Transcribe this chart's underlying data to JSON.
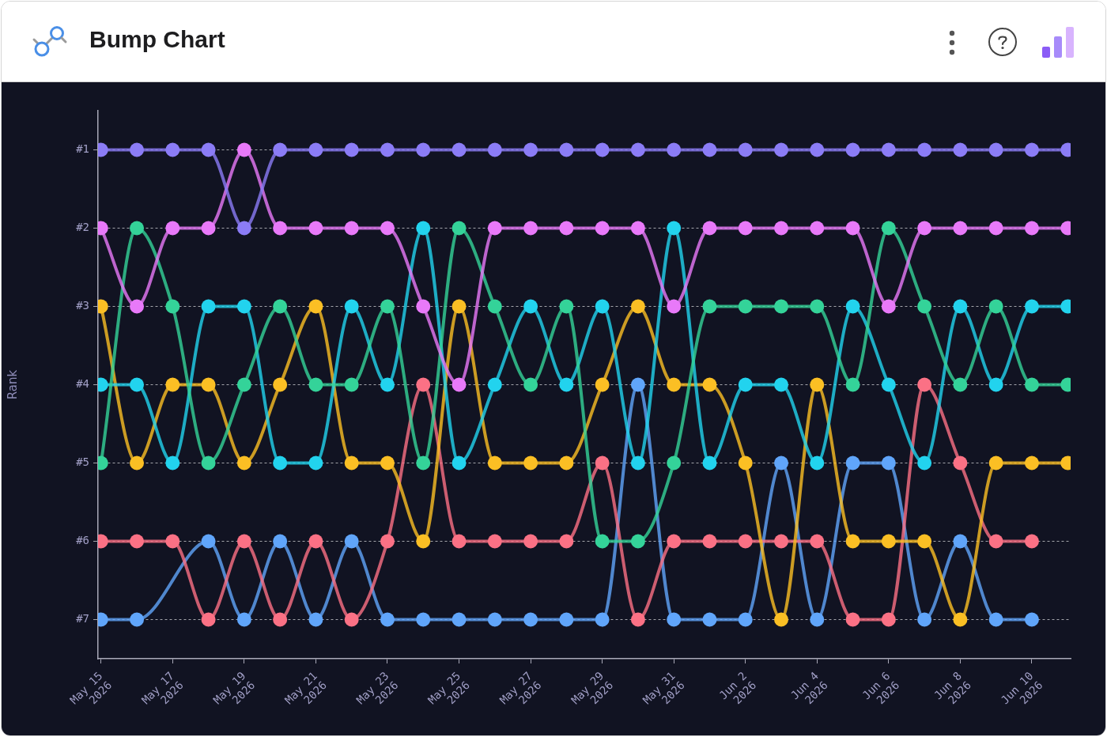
{
  "chart_data": {
    "type": "line",
    "title": "Bump Chart",
    "ylabel": "Rank",
    "x": [
      "2026-05-15",
      "2026-05-16",
      "2026-05-17",
      "2026-05-18",
      "2026-05-19",
      "2026-05-20",
      "2026-05-21",
      "2026-05-22",
      "2026-05-23",
      "2026-05-24",
      "2026-05-25",
      "2026-05-26",
      "2026-05-27",
      "2026-05-28",
      "2026-05-29",
      "2026-05-30",
      "2026-05-31",
      "2026-06-01",
      "2026-06-02",
      "2026-06-03",
      "2026-06-04",
      "2026-06-05",
      "2026-06-06",
      "2026-06-07",
      "2026-06-08",
      "2026-06-09",
      "2026-06-10",
      "2026-06-11"
    ],
    "xlim": [
      "2026-05-14T22:00",
      "2026-06-11T02:00"
    ],
    "xticks": [
      {
        "value": "2026-05-15",
        "label": "May 15\n2026"
      },
      {
        "value": "2026-05-17",
        "label": "May 17\n2026"
      },
      {
        "value": "2026-05-19",
        "label": "May 19\n2026"
      },
      {
        "value": "2026-05-21",
        "label": "May 21\n2026"
      },
      {
        "value": "2026-05-23",
        "label": "May 23\n2026"
      },
      {
        "value": "2026-05-25",
        "label": "May 25\n2026"
      },
      {
        "value": "2026-05-27",
        "label": "May 27\n2026"
      },
      {
        "value": "2026-05-29",
        "label": "May 29\n2026"
      },
      {
        "value": "2026-05-31",
        "label": "May 31\n2026"
      },
      {
        "value": "2026-06-02",
        "label": "Jun 2\n2026"
      },
      {
        "value": "2026-06-04",
        "label": "Jun 4\n2026"
      },
      {
        "value": "2026-06-06",
        "label": "Jun 6\n2026"
      },
      {
        "value": "2026-06-08",
        "label": "Jun 8\n2026"
      },
      {
        "value": "2026-06-10",
        "label": "Jun 10\n2026"
      }
    ],
    "ylim": [
      7.5,
      0.5
    ],
    "yticks": [
      {
        "value": 1,
        "label": "#1"
      },
      {
        "value": 2,
        "label": "#2"
      },
      {
        "value": 3,
        "label": "#3"
      },
      {
        "value": 4,
        "label": "#4"
      },
      {
        "value": 5,
        "label": "#5"
      },
      {
        "value": 6,
        "label": "#6"
      },
      {
        "value": 7,
        "label": "#7"
      }
    ],
    "grid": "y",
    "marker": "circle",
    "series": [
      {
        "color": "#8b7cf6",
        "values": [
          1,
          1,
          1,
          1,
          2,
          1,
          1,
          1,
          1,
          1,
          1,
          1,
          1,
          1,
          1,
          1,
          1,
          1,
          1,
          1,
          1,
          1,
          1,
          1,
          1,
          1,
          1,
          1
        ]
      },
      {
        "color": "#e879f9",
        "values": [
          2,
          3,
          2,
          2,
          1,
          2,
          2,
          2,
          2,
          3,
          4,
          2,
          2,
          2,
          2,
          2,
          3,
          2,
          2,
          2,
          2,
          2,
          3,
          2,
          2,
          2,
          2,
          2
        ]
      },
      {
        "color": "#34d399",
        "values": [
          5,
          2,
          3,
          5,
          4,
          3,
          4,
          4,
          3,
          5,
          2,
          3,
          4,
          3,
          6,
          6,
          5,
          3,
          3,
          3,
          3,
          4,
          2,
          3,
          4,
          3,
          4,
          4
        ]
      },
      {
        "color": "#22d3ee",
        "values": [
          4,
          4,
          5,
          3,
          3,
          5,
          5,
          3,
          4,
          2,
          5,
          4,
          3,
          4,
          3,
          5,
          2,
          5,
          4,
          4,
          5,
          3,
          4,
          5,
          3,
          4,
          3,
          3
        ]
      },
      {
        "color": "#fbbf24",
        "values": [
          3,
          5,
          4,
          4,
          5,
          4,
          3,
          5,
          5,
          6,
          3,
          5,
          5,
          5,
          4,
          3,
          4,
          4,
          5,
          7,
          4,
          6,
          6,
          6,
          7,
          5,
          5,
          5
        ]
      },
      {
        "color": "#fb7185",
        "values": [
          6,
          6,
          6,
          7,
          6,
          7,
          6,
          7,
          6,
          4,
          6,
          6,
          6,
          6,
          5,
          7,
          6,
          6,
          6,
          6,
          6,
          7,
          7,
          4,
          5,
          6,
          6,
          null
        ]
      },
      {
        "color": "#60a5fa",
        "values": [
          7,
          7,
          null,
          6,
          7,
          6,
          7,
          6,
          7,
          7,
          7,
          7,
          7,
          7,
          7,
          4,
          7,
          7,
          7,
          5,
          7,
          5,
          5,
          7,
          6,
          7,
          7,
          null
        ]
      }
    ]
  }
}
